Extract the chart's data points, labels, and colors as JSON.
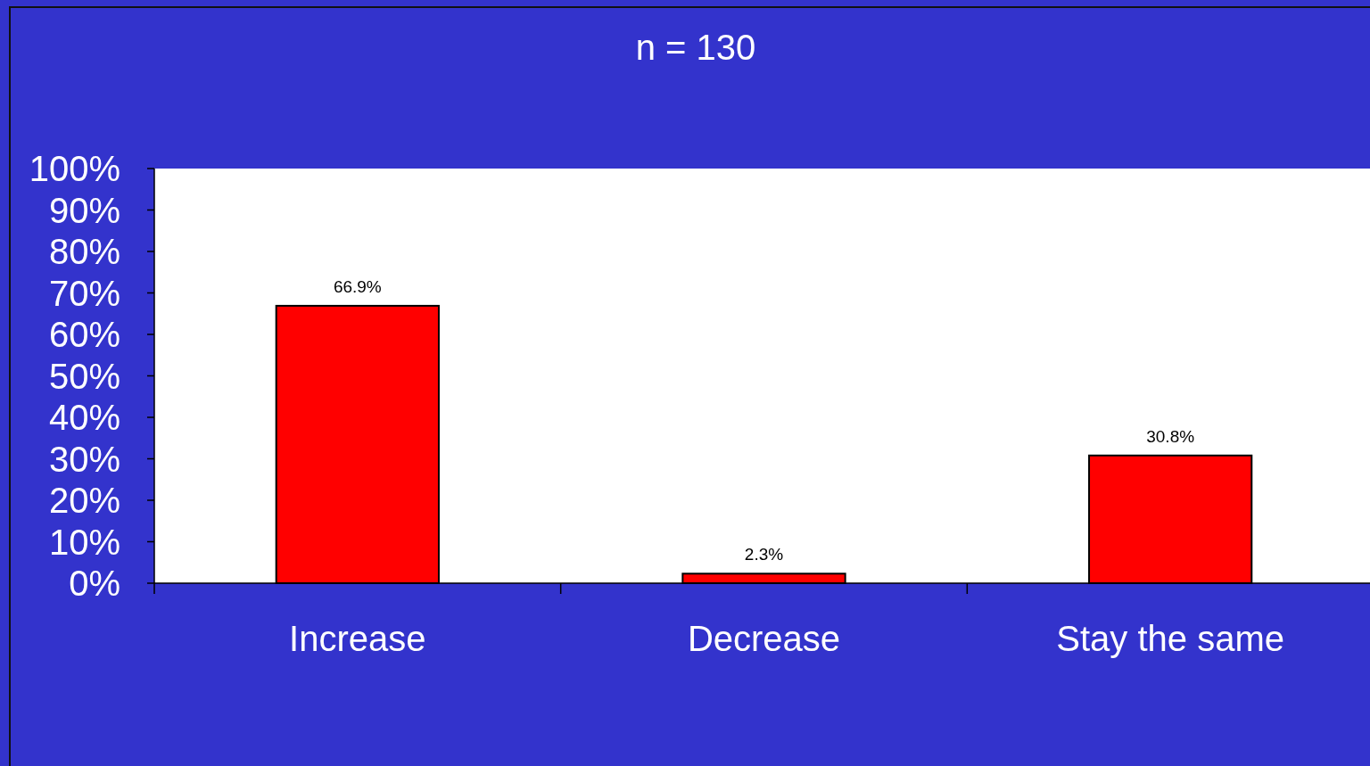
{
  "chart_data": {
    "type": "bar",
    "title": "n = 130",
    "categories": [
      "Increase",
      "Decrease",
      "Stay the same"
    ],
    "values": [
      66.9,
      2.3,
      30.8
    ],
    "color": "#ff0000",
    "value_labels": [
      "66.9%",
      "2.3%",
      "30.8%"
    ],
    "ylim": [
      0,
      100
    ],
    "yticks": [
      {
        "value": 0,
        "label": "0%"
      },
      {
        "value": 10,
        "label": "10%"
      },
      {
        "value": 20,
        "label": "20%"
      },
      {
        "value": 30,
        "label": "30%"
      },
      {
        "value": 40,
        "label": "40%"
      },
      {
        "value": 50,
        "label": "50%"
      },
      {
        "value": 60,
        "label": "60%"
      },
      {
        "value": 70,
        "label": "70%"
      },
      {
        "value": 80,
        "label": "80%"
      },
      {
        "value": 90,
        "label": "90%"
      },
      {
        "value": 100,
        "label": "100%"
      }
    ],
    "grid": false
  }
}
